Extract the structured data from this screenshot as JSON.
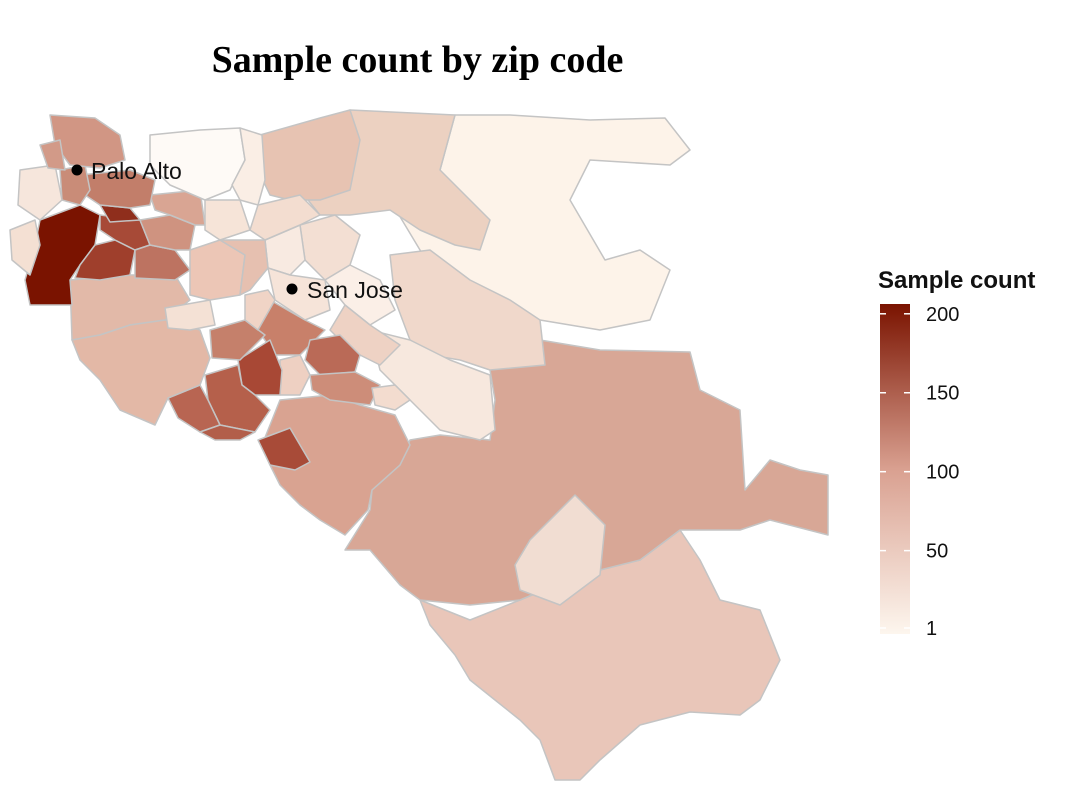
{
  "title": "Sample count by zip code",
  "cities": [
    {
      "name": "Palo Alto"
    },
    {
      "name": "San Jose"
    }
  ],
  "legend": {
    "title": "Sample count",
    "min": 1,
    "max": 210,
    "ticks": [
      "200",
      "150",
      "100",
      "50",
      "1"
    ],
    "tick_values": [
      200,
      150,
      100,
      50,
      1
    ],
    "color_low": "#fdf6ee",
    "color_high": "#7a1300"
  },
  "colors": {
    "border": "#c4c4c4",
    "background": "#ffffff"
  }
}
